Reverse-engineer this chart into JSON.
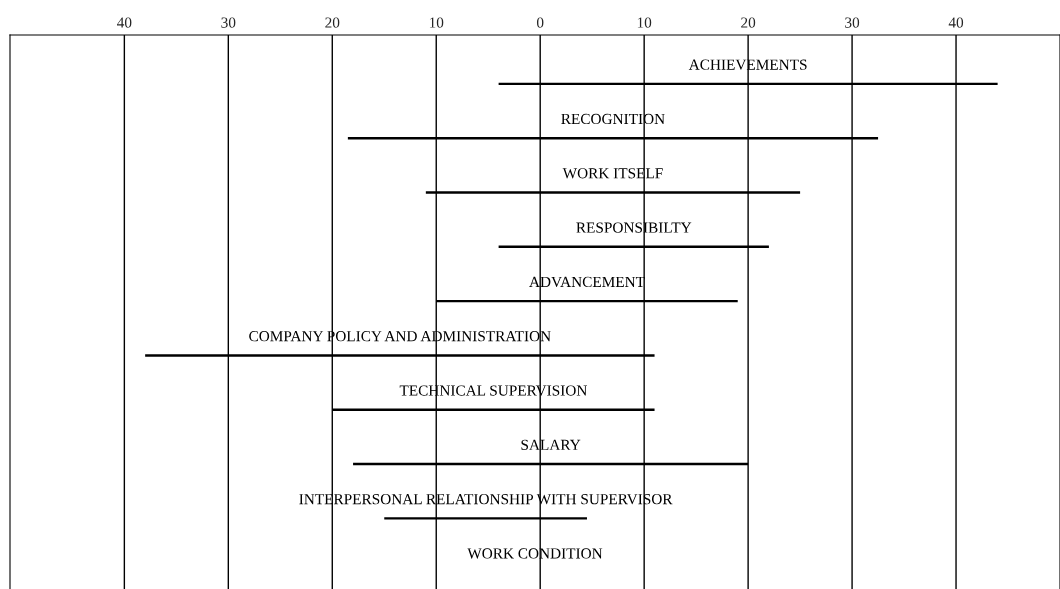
{
  "chart_data": {
    "type": "bar",
    "orientation": "horizontal",
    "categories": [
      "ACHIEVEMENTS",
      "RECOGNITION",
      "WORK ITSELF",
      "RESPONSIBILTY",
      "ADVANCEMENT",
      "COMPANY POLICY AND ADMINISTRATION",
      "TECHNICAL SUPERVISION",
      "SALARY",
      "INTERPERSONAL RELATIONSHIP WITH SUPERVISOR",
      "WORK CONDITION"
    ],
    "base": [
      -4,
      -18.5,
      -11,
      -4,
      -10,
      -38,
      -20,
      -18,
      -15,
      null
    ],
    "values": [
      48,
      51,
      36,
      26,
      29,
      49,
      31,
      38,
      19.5,
      null
    ],
    "color": "#000000",
    "xlim": [
      -51,
      50
    ],
    "xticks": [
      {
        "value": -40,
        "label": "40"
      },
      {
        "value": -30,
        "label": "30"
      },
      {
        "value": -20,
        "label": "20"
      },
      {
        "value": -10,
        "label": "10"
      },
      0,
      10,
      20,
      30,
      40
    ],
    "grid": "x"
  }
}
